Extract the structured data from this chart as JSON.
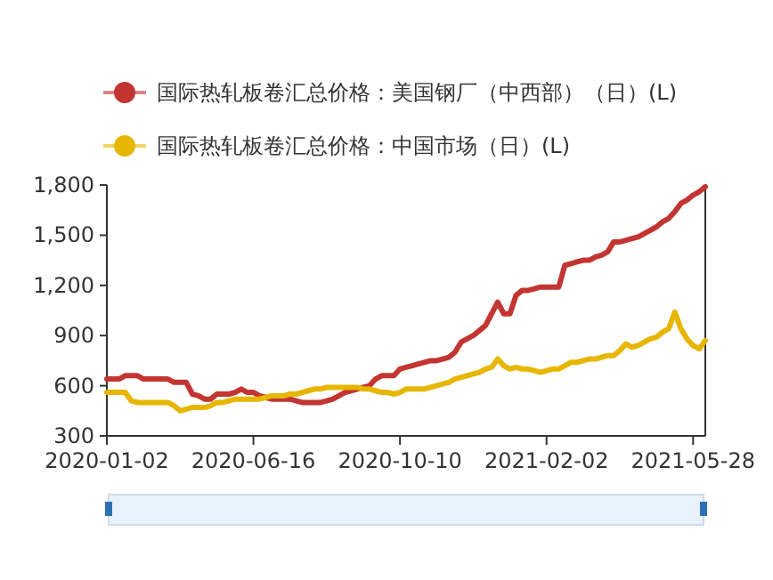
{
  "chart_data": {
    "type": "line",
    "categories": [
      "2020-01-02",
      null,
      null,
      null,
      null,
      null,
      null,
      null,
      null,
      null,
      null,
      null,
      null,
      null,
      null,
      null,
      null,
      null,
      null,
      null,
      null,
      null,
      null,
      null,
      "2020-06-16",
      null,
      null,
      null,
      null,
      null,
      null,
      null,
      null,
      null,
      null,
      null,
      null,
      null,
      null,
      null,
      null,
      null,
      null,
      null,
      null,
      null,
      null,
      null,
      "2020-10-10",
      null,
      null,
      null,
      null,
      null,
      null,
      null,
      null,
      null,
      null,
      null,
      null,
      null,
      null,
      null,
      null,
      null,
      null,
      null,
      null,
      null,
      null,
      null,
      "2021-02-02",
      null,
      null,
      null,
      null,
      null,
      null,
      null,
      null,
      null,
      null,
      null,
      null,
      null,
      null,
      null,
      null,
      null,
      null,
      null,
      null,
      null,
      null,
      null,
      "2021-05-28",
      null,
      null
    ],
    "series": [
      {
        "name": "国际热轧板卷汇总价格：美国钢厂（中西部）（日）(L)",
        "color": "#c23531",
        "values": [
          640,
          640,
          640,
          660,
          660,
          660,
          640,
          640,
          640,
          640,
          640,
          620,
          620,
          620,
          550,
          540,
          520,
          520,
          550,
          550,
          550,
          560,
          580,
          560,
          560,
          540,
          530,
          520,
          520,
          520,
          520,
          510,
          500,
          500,
          500,
          500,
          510,
          520,
          540,
          560,
          570,
          580,
          590,
          600,
          640,
          660,
          660,
          660,
          700,
          710,
          720,
          730,
          740,
          750,
          750,
          760,
          770,
          800,
          860,
          880,
          900,
          930,
          960,
          1030,
          1100,
          1030,
          1030,
          1140,
          1170,
          1170,
          1180,
          1190,
          1190,
          1190,
          1190,
          1320,
          1330,
          1340,
          1350,
          1350,
          1370,
          1380,
          1400,
          1460,
          1460,
          1470,
          1480,
          1490,
          1510,
          1530,
          1550,
          1580,
          1600,
          1640,
          1690,
          1710,
          1740,
          1760,
          1790
        ]
      },
      {
        "name": "国际热轧板卷汇总价格：中国市场（日）(L)",
        "color": "#e6b600",
        "values": [
          560,
          560,
          560,
          560,
          510,
          500,
          500,
          500,
          500,
          500,
          500,
          480,
          450,
          460,
          470,
          470,
          470,
          480,
          500,
          500,
          510,
          520,
          520,
          520,
          520,
          520,
          530,
          540,
          540,
          540,
          550,
          550,
          560,
          570,
          580,
          580,
          590,
          590,
          590,
          590,
          590,
          590,
          580,
          580,
          570,
          560,
          560,
          550,
          560,
          580,
          580,
          580,
          580,
          590,
          600,
          610,
          620,
          640,
          650,
          660,
          670,
          680,
          700,
          710,
          760,
          720,
          700,
          710,
          700,
          700,
          690,
          680,
          690,
          700,
          700,
          720,
          740,
          740,
          750,
          760,
          760,
          770,
          780,
          780,
          810,
          850,
          830,
          840,
          860,
          880,
          890,
          920,
          940,
          1040,
          940,
          880,
          840,
          820,
          870
        ]
      }
    ],
    "ylim": [
      300,
      1800
    ],
    "yticks": [
      300,
      600,
      900,
      {
        "value": 1200,
        "label": "1,200"
      },
      {
        "value": 1500,
        "label": "1,500"
      },
      {
        "value": 1800,
        "label": "1,800"
      }
    ],
    "grid": false,
    "legend": "top"
  }
}
